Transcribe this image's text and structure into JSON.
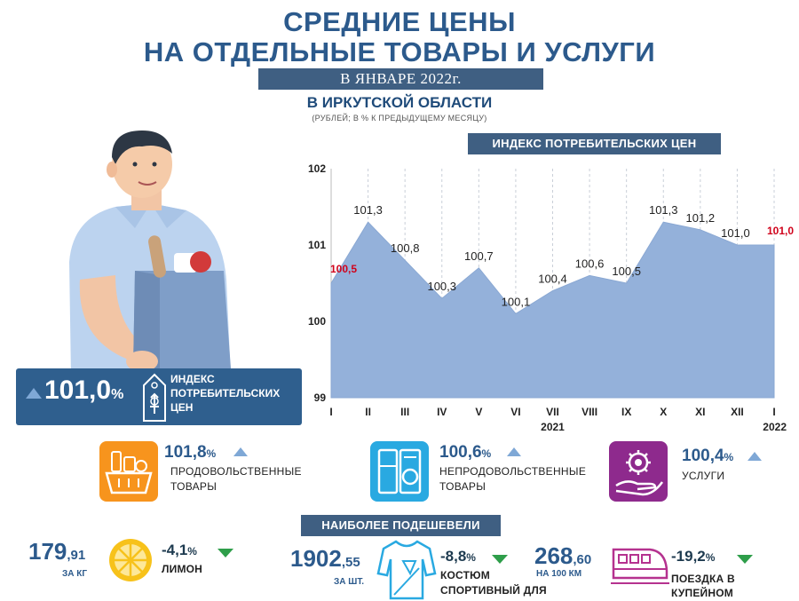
{
  "header": {
    "title_line1": "СРЕДНИЕ ЦЕНЫ",
    "title_line2": "НА ОТДЕЛЬНЫЕ ТОВАРЫ И УСЛУГИ",
    "month": "В ЯНВАРЕ 2022г.",
    "region": "В ИРКУТСКОЙ ОБЛАСТИ",
    "units": "(РУБЛЕЙ; В % К ПРЕДЫДУЩЕМУ МЕСЯЦУ)"
  },
  "colors": {
    "dark_blue": "#2c5a8c",
    "bar_blue": "#3f5f82",
    "chart_fill": "#94b1da",
    "highlight_red": "#d0021b",
    "food_orange": "#f7941d",
    "nonfood_blue": "#29a9e1",
    "services_purple": "#8e2a8d",
    "up_arrow": "#7fa8d6",
    "down_arrow": "#2e9e4a"
  },
  "cpi_panel_title": "ИНДЕКС ПОТРЕБИТЕЛЬСКИХ ЦЕН",
  "chart_data": {
    "type": "area",
    "x": [
      "I",
      "II",
      "III",
      "IV",
      "V",
      "VI",
      "VII",
      "VIII",
      "IX",
      "X",
      "XI",
      "XII",
      "I"
    ],
    "values": [
      100.5,
      101.3,
      100.8,
      100.3,
      100.7,
      100.1,
      100.4,
      100.6,
      100.5,
      101.3,
      101.2,
      101.0,
      101.0
    ],
    "data_labels": [
      "100,5",
      "101,3",
      "100,8",
      "100,3",
      "100,7",
      "100,1",
      "100,4",
      "100,6",
      "100,5",
      "101,3",
      "101,2",
      "101,0",
      "101,0"
    ],
    "highlighted_indices": [
      0,
      12
    ],
    "year_labels": [
      {
        "at_index": 6,
        "text": "2021"
      },
      {
        "at_index": 12,
        "text": "2022"
      }
    ],
    "ylim": [
      99,
      102
    ],
    "y_ticks": [
      99,
      100,
      101,
      102
    ],
    "y_tick_labels": [
      "99",
      "100",
      "101",
      "102"
    ],
    "grid": "vertical dashed",
    "title": "",
    "xlabel": "",
    "ylabel": ""
  },
  "index_summary": {
    "value": "101,0",
    "pct": "%",
    "label": "ИНДЕКС ПОТРЕБИТЕЛЬСКИХ ЦЕН",
    "icon": "price-tag-icon"
  },
  "categories": [
    {
      "value": "101,8",
      "pct": "%",
      "trend": "up",
      "label": "ПРОДОВОЛЬСТВЕННЫЕ ТОВАРЫ",
      "icon": "food-basket-icon",
      "color": "#f7941d"
    },
    {
      "value": "100,6",
      "pct": "%",
      "trend": "up",
      "label": "НЕПРОДОВОЛЬСТВЕННЫЕ ТОВАРЫ",
      "icon": "appliances-icon",
      "color": "#29a9e1"
    },
    {
      "value": "100,4",
      "pct": "%",
      "trend": "up",
      "label": "УСЛУГИ",
      "icon": "hand-gear-icon",
      "color": "#8e2a8d"
    }
  ],
  "cheaper_title": "НАИБОЛЕЕ ПОДЕШЕВЕЛИ",
  "cheaper_items": [
    {
      "price_int": "179",
      "price_dec": ",91",
      "unit": "ЗА КГ",
      "change": "-4,1",
      "pct": "%",
      "label_line1": "ЛИМОН",
      "label_line2": "",
      "icon": "lemon-icon"
    },
    {
      "price_int": "1902",
      "price_dec": ",55",
      "unit": "ЗА ШТ.",
      "change": "-8,8",
      "pct": "%",
      "label_line1": "КОСТЮМ",
      "label_line2": "СПОРТИВНЫЙ ДЛЯ",
      "icon": "sport-suit-icon"
    },
    {
      "price_int": "268",
      "price_dec": ",60",
      "unit": "НА 100 КМ",
      "change": "-19,2",
      "pct": "%",
      "label_line1": "ПОЕЗДКА В",
      "label_line2": "КУПЕЙНОМ",
      "icon": "train-icon"
    }
  ]
}
